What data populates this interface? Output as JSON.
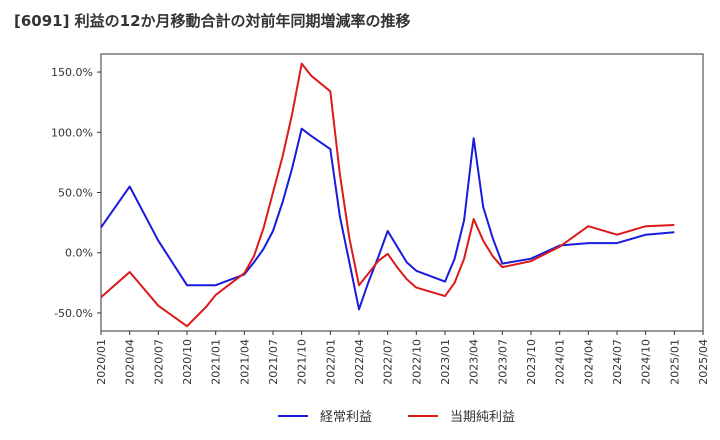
{
  "chart_data": {
    "type": "line",
    "title": "[6091]  利益の12か月移動合計の対前年同期増減率の推移",
    "xlabel": "",
    "ylabel": "",
    "ylim": [
      -65,
      165
    ],
    "x_ticks": [
      "2020/01",
      "2020/04",
      "2020/07",
      "2020/10",
      "2021/01",
      "2021/04",
      "2021/07",
      "2021/10",
      "2022/01",
      "2022/04",
      "2022/07",
      "2022/10",
      "2023/01",
      "2023/04",
      "2023/07",
      "2023/10",
      "2024/01",
      "2024/04",
      "2024/07",
      "2024/10",
      "2025/01",
      "2025/04"
    ],
    "y_ticks": [
      150,
      100,
      50,
      0,
      -50
    ],
    "y_tick_labels": [
      "150.0%",
      "100.0%",
      "50.0%",
      "0.0%",
      "-50.0%"
    ],
    "x_months": [
      0,
      1,
      2,
      3,
      4,
      5,
      6,
      7,
      8,
      9,
      10,
      11,
      12,
      13,
      14,
      15,
      16,
      17,
      18,
      19,
      20,
      21,
      22,
      23,
      24,
      25,
      26,
      27,
      28,
      29,
      30,
      31,
      32,
      33,
      34,
      35,
      36,
      37,
      38,
      39,
      40,
      41,
      42,
      43,
      44,
      45,
      46,
      47,
      48,
      49,
      50,
      51,
      52,
      53,
      54,
      55,
      56,
      57,
      58,
      59,
      60,
      61
    ],
    "series": [
      {
        "name": "経常利益",
        "color": "#1a1adc",
        "points": [
          [
            0,
            21
          ],
          [
            3,
            55
          ],
          [
            6,
            10
          ],
          [
            9,
            -27
          ],
          [
            12,
            -27
          ],
          [
            15,
            -18
          ],
          [
            16,
            -8
          ],
          [
            17,
            3
          ],
          [
            18,
            18
          ],
          [
            19,
            42
          ],
          [
            20,
            70
          ],
          [
            21,
            103
          ],
          [
            22,
            97
          ],
          [
            24,
            86
          ],
          [
            25,
            30
          ],
          [
            26,
            -8
          ],
          [
            27,
            -47
          ],
          [
            28,
            -24
          ],
          [
            29,
            -4
          ],
          [
            30,
            18
          ],
          [
            31,
            5
          ],
          [
            32,
            -8
          ],
          [
            33,
            -15
          ],
          [
            36,
            -24
          ],
          [
            37,
            -5
          ],
          [
            38,
            27
          ],
          [
            39,
            95
          ],
          [
            40,
            38
          ],
          [
            41,
            12
          ],
          [
            42,
            -9
          ],
          [
            45,
            -5
          ],
          [
            48,
            6
          ],
          [
            51,
            8
          ],
          [
            54,
            8
          ],
          [
            57,
            15
          ],
          [
            60,
            17
          ]
        ]
      },
      {
        "name": "当期純利益",
        "color": "#dc1a1a",
        "points": [
          [
            0,
            -37
          ],
          [
            3,
            -16
          ],
          [
            6,
            -44
          ],
          [
            9,
            -61
          ],
          [
            10,
            -53
          ],
          [
            11,
            -45
          ],
          [
            12,
            -35
          ],
          [
            15,
            -17
          ],
          [
            16,
            -3
          ],
          [
            17,
            20
          ],
          [
            18,
            50
          ],
          [
            19,
            80
          ],
          [
            20,
            115
          ],
          [
            21,
            157
          ],
          [
            22,
            147
          ],
          [
            24,
            134
          ],
          [
            25,
            65
          ],
          [
            26,
            12
          ],
          [
            27,
            -27
          ],
          [
            28,
            -17
          ],
          [
            29,
            -7
          ],
          [
            30,
            -1
          ],
          [
            31,
            -12
          ],
          [
            32,
            -22
          ],
          [
            33,
            -29
          ],
          [
            36,
            -36
          ],
          [
            37,
            -25
          ],
          [
            38,
            -5
          ],
          [
            39,
            28
          ],
          [
            40,
            10
          ],
          [
            41,
            -3
          ],
          [
            42,
            -12
          ],
          [
            45,
            -7
          ],
          [
            48,
            5
          ],
          [
            51,
            22
          ],
          [
            54,
            15
          ],
          [
            57,
            22
          ],
          [
            60,
            23
          ]
        ]
      }
    ],
    "legend_position": "bottom-center"
  }
}
